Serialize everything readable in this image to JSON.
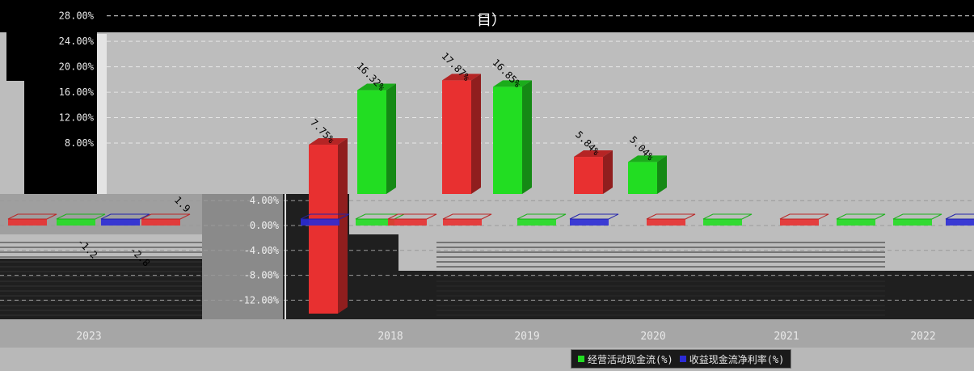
{
  "title": {
    "line1": "",
    "line2": "目）"
  },
  "chart_data": {
    "type": "bar",
    "categories": [
      "2023",
      "2018",
      "2019",
      "2020",
      "2021",
      "2022"
    ],
    "series": [
      {
        "name": "",
        "color": "#e83030",
        "values": [
          1.9,
          7.75,
          17.87,
          5.84,
          null,
          null
        ]
      },
      {
        "name": "",
        "color": "#22dd22",
        "values": [
          -1.2,
          16.32,
          16.85,
          5.04,
          null,
          null
        ]
      },
      {
        "name": "",
        "color": "#2b2bd6",
        "values": [
          -2.8,
          0.0,
          null,
          null,
          null,
          null
        ]
      }
    ],
    "data_labels": [
      "1.9",
      "7.75%",
      "17.87%",
      "16.32%",
      "16.85%",
      "5.84%",
      "5.04%",
      "-1.2",
      "-2.8"
    ],
    "yticks_upper": [
      "28.00%",
      "24.00%",
      "20.00%",
      "16.00%",
      "12.00%",
      "8.00%"
    ],
    "yticks_lower": [
      "4.00%",
      "0.00%",
      "-4.00%",
      "-8.00%",
      "-12.00%"
    ],
    "ylim": [
      -13,
      29
    ],
    "grid": true,
    "legend_position": "bottom-right",
    "legend": [
      "经营活动现金流(%)",
      "收益现金流净利率(%)"
    ],
    "xlabel": "",
    "ylabel": ""
  },
  "colors": {
    "background": "#bdbdbd",
    "red": "#e83030",
    "green": "#22dd22",
    "blue": "#2b2bd6"
  }
}
